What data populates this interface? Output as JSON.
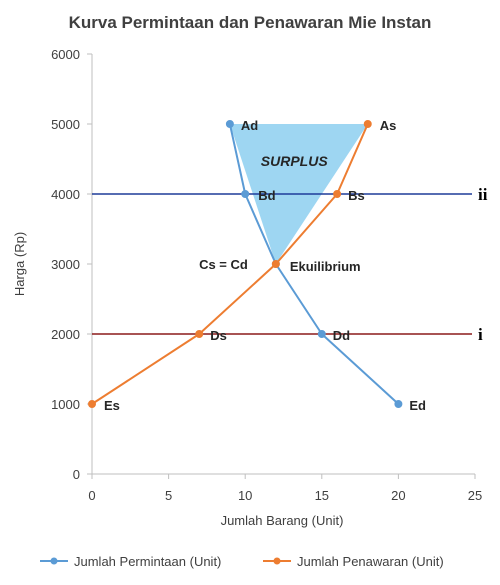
{
  "chart_data": {
    "type": "line",
    "title": "Kurva Permintaan dan Penawaran Mie Instan",
    "xlabel": "Jumlah Barang (Unit)",
    "ylabel": "Harga (Rp)",
    "xlim": [
      0,
      25
    ],
    "ylim": [
      0,
      6000
    ],
    "xticks": [
      "0",
      "5",
      "10",
      "15",
      "20",
      "25"
    ],
    "yticks": [
      "0",
      "1000",
      "2000",
      "3000",
      "4000",
      "5000",
      "6000"
    ],
    "grid": false,
    "legend_position": "bottom",
    "series": [
      {
        "name": "Jumlah Permintaan (Unit)",
        "color": "#5b9bd5",
        "points": [
          {
            "x": 9,
            "y": 5000,
            "label": "Ad"
          },
          {
            "x": 10,
            "y": 4000,
            "label": "Bd"
          },
          {
            "x": 12,
            "y": 3000,
            "label": ""
          },
          {
            "x": 15,
            "y": 2000,
            "label": "Dd"
          },
          {
            "x": 20,
            "y": 1000,
            "label": "Ed"
          }
        ]
      },
      {
        "name": "Jumlah Penawaran (Unit)",
        "color": "#ed7d31",
        "points": [
          {
            "x": 18,
            "y": 5000,
            "label": "As"
          },
          {
            "x": 16,
            "y": 4000,
            "label": "Bs"
          },
          {
            "x": 12,
            "y": 3000,
            "label": ""
          },
          {
            "x": 7,
            "y": 2000,
            "label": "Ds"
          },
          {
            "x": 0,
            "y": 1000,
            "label": "Es"
          }
        ]
      }
    ],
    "reference_lines": [
      {
        "y": 4000,
        "label": "ii",
        "color": "#1f3c99"
      },
      {
        "y": 2000,
        "label": "i",
        "color": "#8b1a1a"
      }
    ],
    "shaded_region": {
      "label": "SURPLUS",
      "color": "#7ec8ee",
      "polygon": [
        [
          9,
          5000
        ],
        [
          18,
          5000
        ],
        [
          12,
          3000
        ]
      ]
    },
    "annotations": [
      {
        "text": "Cs = Cd",
        "x": 12,
        "y": 3000
      },
      {
        "text": "Ekuilibrium",
        "x": 12,
        "y": 3000
      }
    ]
  }
}
